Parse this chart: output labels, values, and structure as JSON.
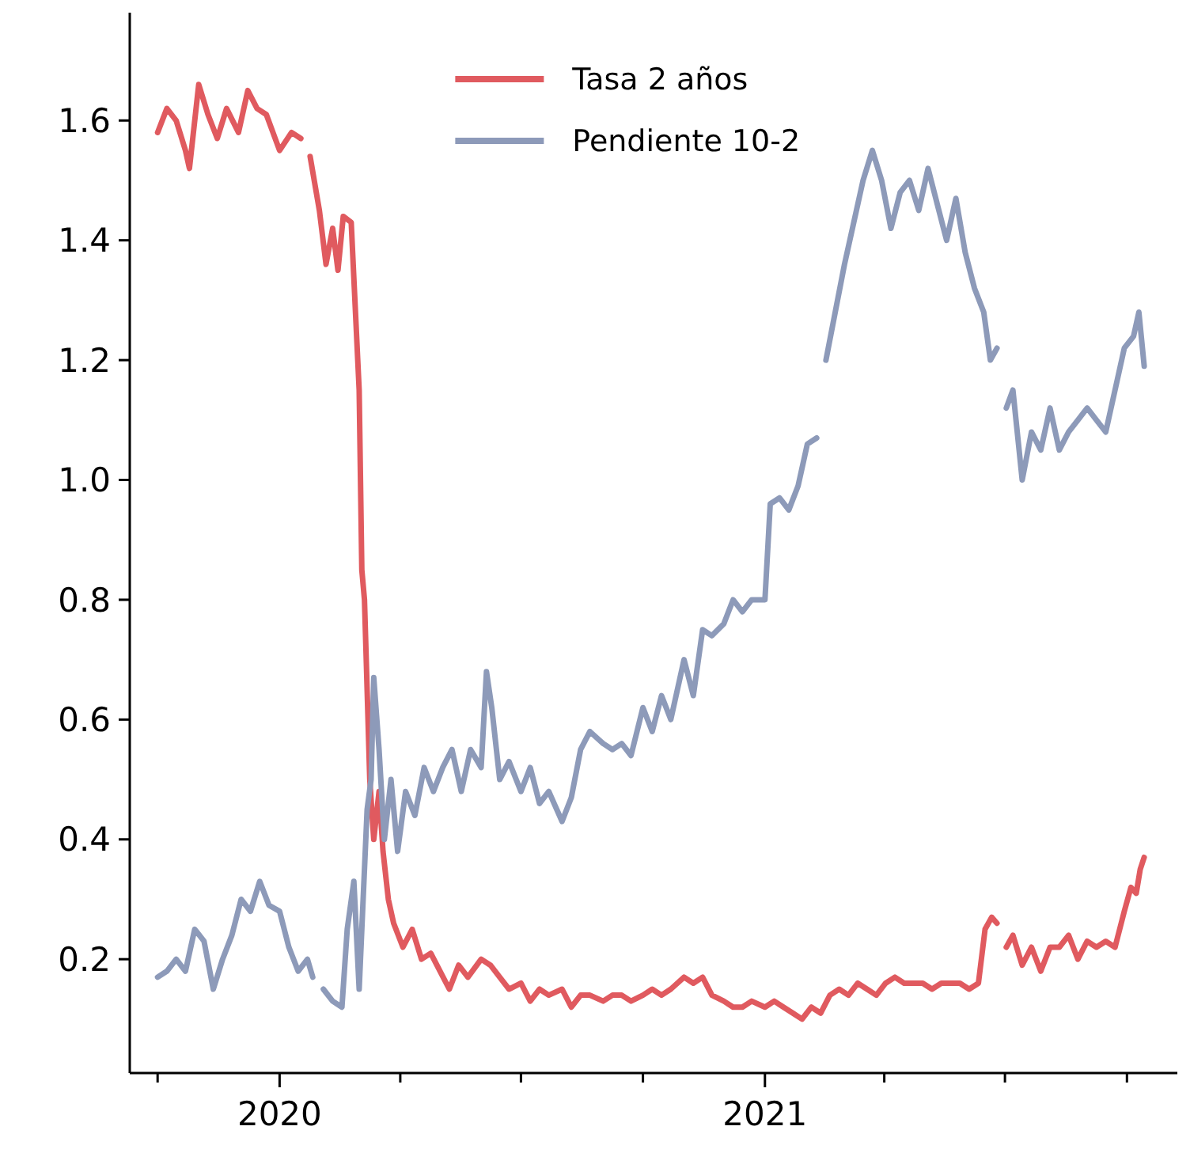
{
  "chart_data": {
    "type": "line",
    "xlim": [
      "2019-09-10",
      "2021-11-08"
    ],
    "xticks": [
      {
        "value": "2019-10-01",
        "label": null
      },
      {
        "value": "2020-01-01",
        "label": "2020"
      },
      {
        "value": "2020-04-01",
        "label": null
      },
      {
        "value": "2020-07-01",
        "label": null
      },
      {
        "value": "2020-10-01",
        "label": null
      },
      {
        "value": "2021-01-01",
        "label": "2021"
      },
      {
        "value": "2021-04-01",
        "label": null
      },
      {
        "value": "2021-07-01",
        "label": null
      },
      {
        "value": "2021-10-01",
        "label": null
      }
    ],
    "ylim": [
      0.01,
      1.78
    ],
    "yticks": [
      0.2,
      0.4,
      0.6,
      0.8,
      {
        "value": 1,
        "label": "1.0"
      },
      1.2,
      1.4,
      1.6
    ],
    "grid": false,
    "legend": "top",
    "line_style": "solid",
    "marker": "none",
    "series": [
      {
        "name": "Tasa 2 años",
        "color": "#e05a5f",
        "x": [
          "2019-10-01",
          "2019-10-08",
          "2019-10-15",
          "2019-10-22",
          "2019-10-25",
          "2019-11-01",
          "2019-11-08",
          "2019-11-15",
          "2019-11-22",
          "2019-12-01",
          "2019-12-08",
          "2019-12-15",
          "2019-12-22",
          "2020-01-01",
          "2020-01-10",
          "2020-01-17",
          "2020-01-20",
          "2020-01-24",
          "2020-01-31",
          "2020-02-05",
          "2020-02-10",
          "2020-02-14",
          "2020-02-18",
          "2020-02-24",
          "2020-03-01",
          "2020-03-03",
          "2020-03-05",
          "2020-03-09",
          "2020-03-12",
          "2020-03-16",
          "2020-03-19",
          "2020-03-23",
          "2020-03-27",
          "2020-04-03",
          "2020-04-10",
          "2020-04-17",
          "2020-04-24",
          "2020-05-01",
          "2020-05-08",
          "2020-05-15",
          "2020-05-22",
          "2020-06-01",
          "2020-06-08",
          "2020-06-15",
          "2020-06-22",
          "2020-07-01",
          "2020-07-08",
          "2020-07-15",
          "2020-07-22",
          "2020-08-01",
          "2020-08-08",
          "2020-08-15",
          "2020-08-22",
          "2020-09-01",
          "2020-09-08",
          "2020-09-15",
          "2020-09-22",
          "2020-10-01",
          "2020-10-08",
          "2020-10-15",
          "2020-10-22",
          "2020-11-01",
          "2020-11-08",
          "2020-11-15",
          "2020-11-22",
          "2020-12-01",
          "2020-12-08",
          "2020-12-15",
          "2020-12-22",
          "2021-01-01",
          "2021-01-08",
          "2021-01-15",
          "2021-01-22",
          "2021-01-29",
          "2021-02-05",
          "2021-02-12",
          "2021-02-19",
          "2021-02-26",
          "2021-03-05",
          "2021-03-12",
          "2021-03-19",
          "2021-03-26",
          "2021-04-02",
          "2021-04-09",
          "2021-04-16",
          "2021-04-23",
          "2021-04-30",
          "2021-05-07",
          "2021-05-14",
          "2021-05-21",
          "2021-05-28",
          "2021-06-04",
          "2021-06-11",
          "2021-06-16",
          "2021-06-21",
          "2021-06-25",
          "2021-06-28",
          "2021-07-02",
          "2021-07-07",
          "2021-07-14",
          "2021-07-21",
          "2021-07-28",
          "2021-08-04",
          "2021-08-11",
          "2021-08-18",
          "2021-08-25",
          "2021-09-01",
          "2021-09-08",
          "2021-09-15",
          "2021-09-22",
          "2021-09-29",
          "2021-10-04",
          "2021-10-08",
          "2021-10-11",
          "2021-10-14"
        ],
        "values": [
          1.58,
          1.62,
          1.6,
          1.55,
          1.52,
          1.66,
          1.61,
          1.57,
          1.62,
          1.58,
          1.65,
          1.62,
          1.61,
          1.55,
          1.58,
          1.57,
          null,
          1.54,
          1.45,
          1.36,
          1.42,
          1.35,
          1.44,
          1.43,
          1.15,
          0.85,
          0.8,
          0.5,
          0.4,
          0.48,
          0.38,
          0.3,
          0.26,
          0.22,
          0.25,
          0.2,
          0.21,
          0.18,
          0.15,
          0.19,
          0.17,
          0.2,
          0.19,
          0.17,
          0.15,
          0.16,
          0.13,
          0.15,
          0.14,
          0.15,
          0.12,
          0.14,
          0.14,
          0.13,
          0.14,
          0.14,
          0.13,
          0.14,
          0.15,
          0.14,
          0.15,
          0.17,
          0.16,
          0.17,
          0.14,
          0.13,
          0.12,
          0.12,
          0.13,
          0.12,
          0.13,
          0.12,
          0.11,
          0.1,
          0.12,
          0.11,
          0.14,
          0.15,
          0.14,
          0.16,
          0.15,
          0.14,
          0.16,
          0.17,
          0.16,
          0.16,
          0.16,
          0.15,
          0.16,
          0.16,
          0.16,
          0.15,
          0.16,
          0.25,
          0.27,
          0.26,
          null,
          0.22,
          0.24,
          0.19,
          0.22,
          0.18,
          0.22,
          0.22,
          0.24,
          0.2,
          0.23,
          0.22,
          0.23,
          0.22,
          0.28,
          0.32,
          0.31,
          0.35,
          0.37
        ]
      },
      {
        "name": "Pendiente 10-2",
        "color": "#8d9ab9",
        "x": [
          "2019-10-01",
          "2019-10-08",
          "2019-10-15",
          "2019-10-22",
          "2019-10-29",
          "2019-11-05",
          "2019-11-12",
          "2019-11-19",
          "2019-11-26",
          "2019-12-03",
          "2019-12-10",
          "2019-12-17",
          "2019-12-24",
          "2020-01-01",
          "2020-01-08",
          "2020-01-15",
          "2020-01-22",
          "2020-01-26",
          "2020-01-30",
          "2020-02-03",
          "2020-02-10",
          "2020-02-17",
          "2020-02-21",
          "2020-02-26",
          "2020-03-01",
          "2020-03-04",
          "2020-03-07",
          "2020-03-10",
          "2020-03-12",
          "2020-03-16",
          "2020-03-20",
          "2020-03-25",
          "2020-03-30",
          "2020-04-05",
          "2020-04-12",
          "2020-04-19",
          "2020-04-26",
          "2020-05-03",
          "2020-05-10",
          "2020-05-17",
          "2020-05-24",
          "2020-06-01",
          "2020-06-05",
          "2020-06-09",
          "2020-06-15",
          "2020-06-22",
          "2020-07-01",
          "2020-07-08",
          "2020-07-15",
          "2020-07-22",
          "2020-08-01",
          "2020-08-08",
          "2020-08-15",
          "2020-08-22",
          "2020-09-01",
          "2020-09-08",
          "2020-09-15",
          "2020-09-22",
          "2020-10-01",
          "2020-10-08",
          "2020-10-15",
          "2020-10-22",
          "2020-11-01",
          "2020-11-08",
          "2020-11-15",
          "2020-11-22",
          "2020-12-01",
          "2020-12-08",
          "2020-12-15",
          "2020-12-22",
          "2021-01-01",
          "2021-01-05",
          "2021-01-12",
          "2021-01-19",
          "2021-01-26",
          "2021-02-02",
          "2021-02-09",
          "2021-02-12",
          "2021-02-16",
          "2021-02-23",
          "2021-03-02",
          "2021-03-09",
          "2021-03-16",
          "2021-03-23",
          "2021-03-30",
          "2021-04-06",
          "2021-04-13",
          "2021-04-20",
          "2021-04-27",
          "2021-05-04",
          "2021-05-11",
          "2021-05-18",
          "2021-05-25",
          "2021-06-01",
          "2021-06-08",
          "2021-06-15",
          "2021-06-20",
          "2021-06-25",
          "2021-06-29",
          "2021-07-02",
          "2021-07-07",
          "2021-07-14",
          "2021-07-21",
          "2021-07-28",
          "2021-08-04",
          "2021-08-11",
          "2021-08-18",
          "2021-08-25",
          "2021-09-01",
          "2021-09-08",
          "2021-09-15",
          "2021-09-22",
          "2021-09-29",
          "2021-10-06",
          "2021-10-10",
          "2021-10-14"
        ],
        "values": [
          0.17,
          0.18,
          0.2,
          0.18,
          0.25,
          0.23,
          0.15,
          0.2,
          0.24,
          0.3,
          0.28,
          0.33,
          0.29,
          0.28,
          0.22,
          0.18,
          0.2,
          0.17,
          null,
          0.15,
          0.13,
          0.12,
          0.25,
          0.33,
          0.15,
          0.3,
          0.45,
          0.5,
          0.67,
          0.55,
          0.4,
          0.5,
          0.38,
          0.48,
          0.44,
          0.52,
          0.48,
          0.52,
          0.55,
          0.48,
          0.55,
          0.52,
          0.68,
          0.62,
          0.5,
          0.53,
          0.48,
          0.52,
          0.46,
          0.48,
          0.43,
          0.47,
          0.55,
          0.58,
          0.56,
          0.55,
          0.56,
          0.54,
          0.62,
          0.58,
          0.64,
          0.6,
          0.7,
          0.64,
          0.75,
          0.74,
          0.76,
          0.8,
          0.78,
          0.8,
          0.8,
          0.96,
          0.97,
          0.95,
          0.99,
          1.06,
          1.07,
          null,
          1.2,
          1.28,
          1.36,
          1.43,
          1.5,
          1.55,
          1.5,
          1.42,
          1.48,
          1.5,
          1.45,
          1.52,
          1.46,
          1.4,
          1.47,
          1.38,
          1.32,
          1.28,
          1.2,
          1.22,
          null,
          1.12,
          1.15,
          1.0,
          1.08,
          1.05,
          1.12,
          1.05,
          1.08,
          1.1,
          1.12,
          1.1,
          1.08,
          1.15,
          1.22,
          1.24,
          1.28,
          1.19
        ]
      }
    ]
  }
}
